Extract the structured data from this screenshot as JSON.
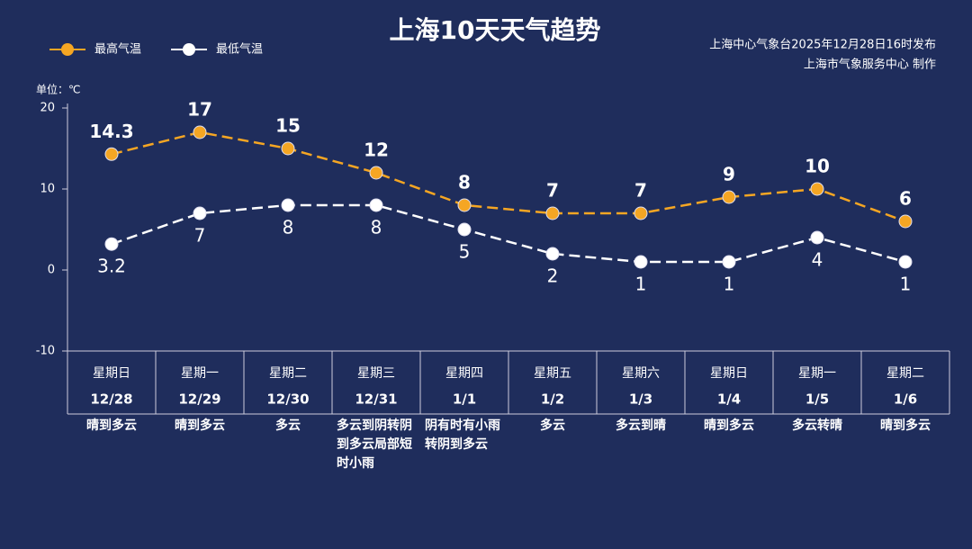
{
  "chart_data": {
    "type": "line",
    "title": "上海10天天气趋势",
    "source_lines": [
      "上海中心气象台2025年12月28日16时发布",
      "上海市气象服务中心 制作"
    ],
    "unit_label": "单位：℃",
    "categories": [
      "12/28",
      "12/29",
      "12/30",
      "12/31",
      "1/1",
      "1/2",
      "1/3",
      "1/4",
      "1/5",
      "1/6"
    ],
    "weekdays": [
      "星期日",
      "星期一",
      "星期二",
      "星期三",
      "星期四",
      "星期五",
      "星期六",
      "星期日",
      "星期一",
      "星期二"
    ],
    "weekday_colors": [
      "#f5a623",
      "#ffffff",
      "#ffffff",
      "#ffffff",
      "#ffffff",
      "#ffffff",
      "#f5a623",
      "#f5a623",
      "#ffffff",
      "#ffffff"
    ],
    "weather": [
      "晴到多云",
      "晴到多云",
      "多云",
      "多云到阴转阴到多云局部短时小雨",
      "阴有时有小雨转阴到多云",
      "多云",
      "多云到晴",
      "晴到多云",
      "多云转晴",
      "晴到多云"
    ],
    "series": [
      {
        "name": "最高气温",
        "color": "#f5a623",
        "values": [
          14.3,
          17,
          15,
          12,
          8,
          7,
          7,
          9,
          10,
          6
        ]
      },
      {
        "name": "最低气温",
        "color": "#ffffff",
        "values": [
          3.2,
          7,
          8,
          8,
          5,
          2,
          1,
          1,
          4,
          1
        ]
      }
    ],
    "ylim": [
      -10,
      20
    ],
    "yticks": [
      20,
      10,
      0,
      -10
    ]
  }
}
